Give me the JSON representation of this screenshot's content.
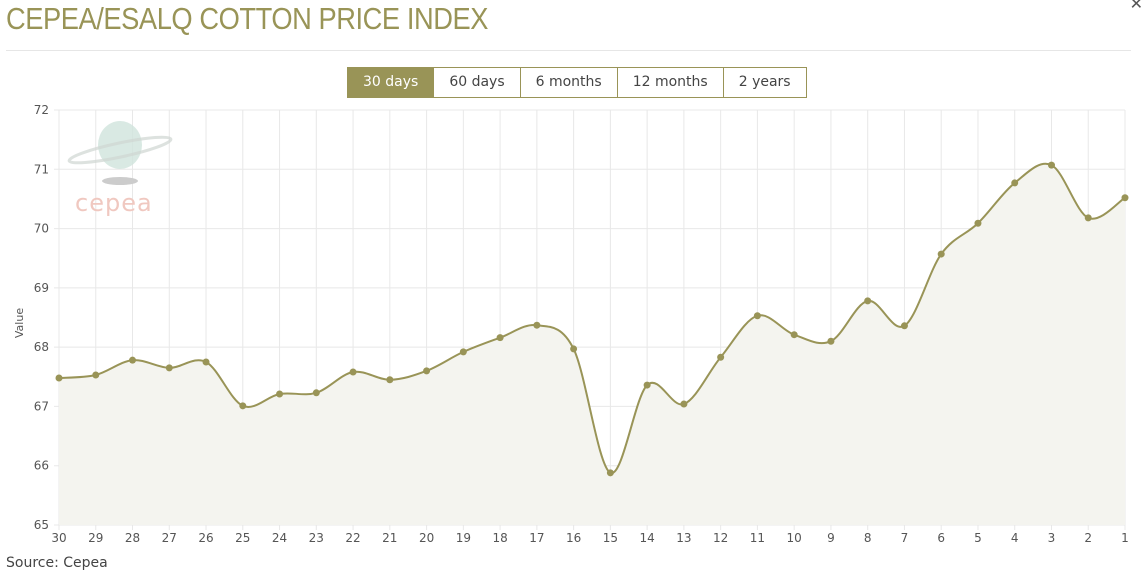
{
  "header": {
    "title": "CEPEA/ESALQ COTTON PRICE INDEX",
    "close_icon": "close-icon"
  },
  "tabs": [
    {
      "label": "30 days",
      "active": true
    },
    {
      "label": "60 days",
      "active": false
    },
    {
      "label": "6 months",
      "active": false
    },
    {
      "label": "12 months",
      "active": false
    },
    {
      "label": "2 years",
      "active": false
    }
  ],
  "logo": {
    "text": "cepea"
  },
  "colors": {
    "accent": "#999457",
    "fill": "#f4f4ef",
    "grid": "#e8e8e8"
  },
  "chart_data": {
    "type": "area",
    "xlabel": "",
    "ylabel": "Value",
    "categories": [
      "30",
      "29",
      "28",
      "27",
      "26",
      "25",
      "24",
      "23",
      "22",
      "21",
      "20",
      "19",
      "18",
      "17",
      "16",
      "15",
      "14",
      "13",
      "12",
      "11",
      "10",
      "9",
      "8",
      "7",
      "6",
      "5",
      "4",
      "3",
      "2",
      "1"
    ],
    "values": [
      67.48,
      67.53,
      67.78,
      67.65,
      67.75,
      67.01,
      67.21,
      67.23,
      67.58,
      67.45,
      67.6,
      67.92,
      68.16,
      68.37,
      67.97,
      65.88,
      67.36,
      67.04,
      67.83,
      68.53,
      68.21,
      68.1,
      68.78,
      68.36,
      69.57,
      70.09,
      70.77,
      71.07,
      70.18,
      70.52
    ],
    "ylim": [
      65,
      72
    ],
    "yticks": [
      "65",
      "66",
      "67",
      "68",
      "69",
      "70",
      "71",
      "72"
    ],
    "grid": true,
    "smooth": true,
    "legend": "none"
  },
  "footer": {
    "source": "Source: Cepea"
  }
}
